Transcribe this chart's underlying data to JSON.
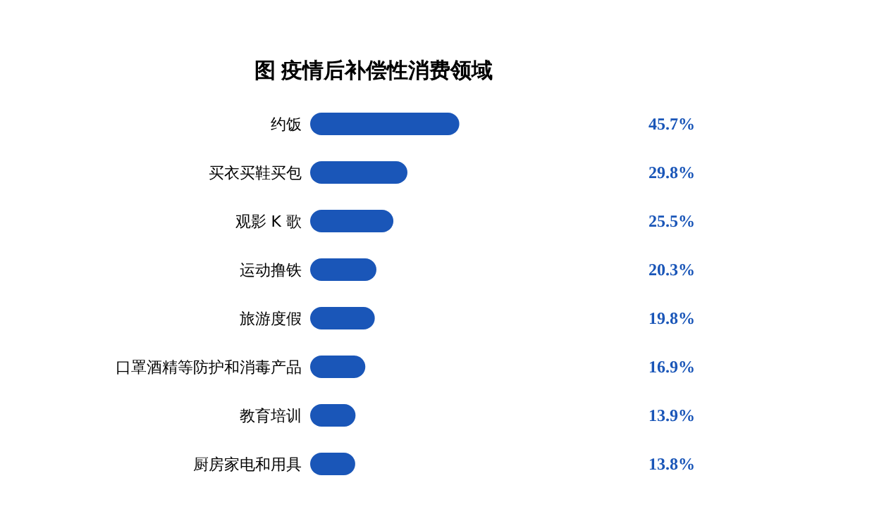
{
  "chart_data": {
    "type": "bar",
    "orientation": "horizontal",
    "title": "图  疫情后补偿性消费领域",
    "categories": [
      "约饭",
      "买衣买鞋买包",
      "观影 K 歌",
      "运动撸铁",
      "旅游度假",
      "口罩酒精等防护和消毒产品",
      "教育培训",
      "厨房家电和用具"
    ],
    "values": [
      45.7,
      29.8,
      25.5,
      20.3,
      19.8,
      16.9,
      13.9,
      13.8
    ],
    "color": "#1a56b8",
    "value_labels": [
      "45.7%",
      "29.8%",
      "25.5%",
      "20.3%",
      "19.8%",
      "16.9%",
      "13.9%",
      "13.8%"
    ]
  }
}
